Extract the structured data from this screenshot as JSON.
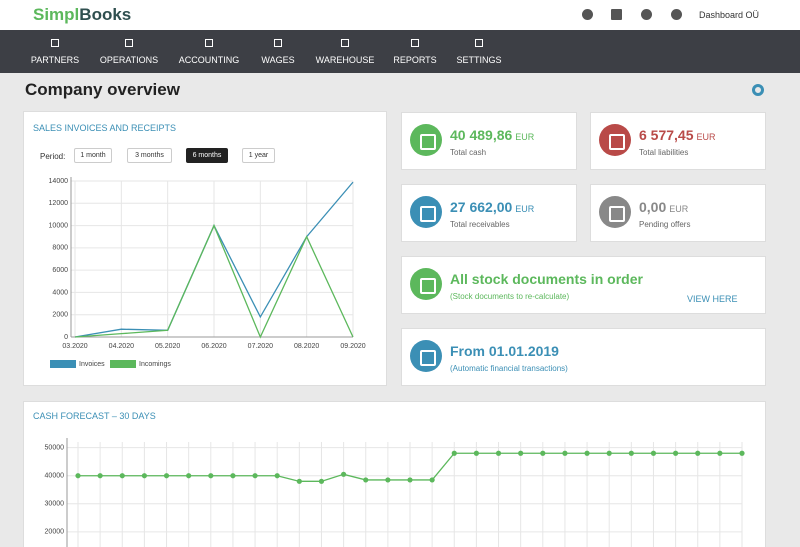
{
  "header": {
    "logo_part1": "Simpl",
    "logo_part2": "Books",
    "user": "Dashboard OÜ"
  },
  "nav": [
    "PARTNERS",
    "OPERATIONS",
    "ACCOUNTING",
    "WAGES",
    "WAREHOUSE",
    "REPORTS",
    "SETTINGS"
  ],
  "page_title": "Company overview",
  "sales_panel": {
    "period_label": "Period:",
    "periods": [
      "1 month",
      "3 months",
      "6 months",
      "1 year"
    ],
    "active_period": 2,
    "chart_data": {
      "type": "line",
      "title": "SALES INVOICES AND RECEIPTS",
      "categories": [
        "03.2020",
        "04.2020",
        "05.2020",
        "06.2020",
        "07.2020",
        "08.2020",
        "09.2020"
      ],
      "series": [
        {
          "name": "Invoices",
          "color": "#3b8fb5",
          "values": [
            0,
            700,
            600,
            10000,
            1800,
            9000,
            13900
          ]
        },
        {
          "name": "Incomings",
          "color": "#5cb85c",
          "values": [
            0,
            300,
            600,
            10000,
            0,
            9000,
            0
          ]
        }
      ],
      "ylim": [
        0,
        14000
      ],
      "yticks": [
        0,
        2000,
        4000,
        6000,
        8000,
        10000,
        12000,
        14000
      ],
      "grid": true
    }
  },
  "cards": [
    {
      "value": "40 489,86",
      "currency": "EUR",
      "label": "Total cash",
      "color": "#5cb85c"
    },
    {
      "value": "6 577,45",
      "currency": "EUR",
      "label": "Total liabilities",
      "color": "#b94a48"
    },
    {
      "value": "27 662,00",
      "currency": "EUR",
      "label": "Total receivables",
      "color": "#3b8fb5"
    },
    {
      "value": "0,00",
      "currency": "EUR",
      "label": "Pending offers",
      "color": "#888888"
    }
  ],
  "stock": {
    "title": "All stock documents in order",
    "subtitle": "(Stock documents to re-calculate)",
    "link": "VIEW HERE"
  },
  "period_info": {
    "title": "From 01.01.2019",
    "subtitle": "(Automatic financial transactions)"
  },
  "cash_panel": {
    "chart_data": {
      "type": "line",
      "title": "CASH FORECAST – 30 DAYS",
      "series": [
        {
          "color": "#5cb85c",
          "values": [
            40000,
            40000,
            40000,
            40000,
            40000,
            40000,
            40000,
            40000,
            40000,
            40000,
            38000,
            38000,
            40500,
            38500,
            38500,
            38500,
            38500,
            48000,
            48000,
            48000,
            48000,
            48000,
            48000,
            48000,
            48000,
            48000,
            48000,
            48000,
            48000,
            48000,
            48000
          ]
        }
      ],
      "ylim": [
        10000,
        52000
      ],
      "yticks": [
        20000,
        30000,
        40000,
        50000
      ],
      "grid": true
    }
  }
}
